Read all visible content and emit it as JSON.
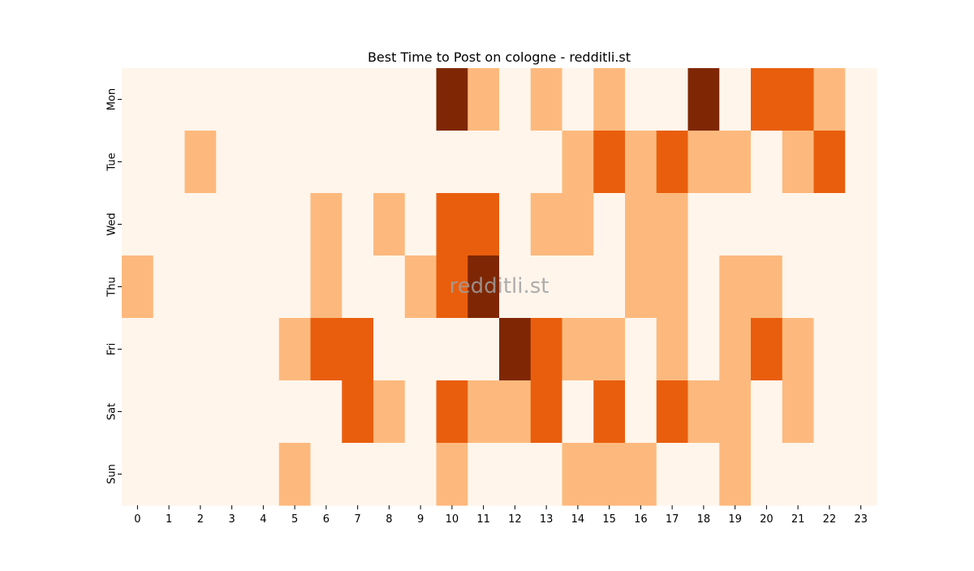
{
  "chart_data": {
    "type": "heatmap",
    "title": "Best Time to Post on cologne - redditli.st",
    "watermark": "redditli.st",
    "xlabel": "",
    "ylabel": "",
    "x": [
      "0",
      "1",
      "2",
      "3",
      "4",
      "5",
      "6",
      "7",
      "8",
      "9",
      "10",
      "11",
      "12",
      "13",
      "14",
      "15",
      "16",
      "17",
      "18",
      "19",
      "20",
      "21",
      "22",
      "23"
    ],
    "y": [
      "Mon",
      "Tue",
      "Wed",
      "Thu",
      "Fri",
      "Sat",
      "Sun"
    ],
    "values": [
      [
        0,
        0,
        0,
        0,
        0,
        0,
        0,
        0,
        0,
        0,
        3,
        1,
        0,
        1,
        0,
        1,
        0,
        0,
        3,
        0,
        2,
        2,
        1,
        0
      ],
      [
        0,
        0,
        1,
        0,
        0,
        0,
        0,
        0,
        0,
        0,
        0,
        0,
        0,
        0,
        1,
        2,
        1,
        2,
        1,
        1,
        0,
        1,
        2,
        0
      ],
      [
        0,
        0,
        0,
        0,
        0,
        0,
        1,
        0,
        1,
        0,
        2,
        2,
        0,
        1,
        1,
        0,
        1,
        1,
        0,
        0,
        0,
        0,
        0,
        0
      ],
      [
        1,
        0,
        0,
        0,
        0,
        0,
        1,
        0,
        0,
        1,
        2,
        3,
        0,
        0,
        0,
        0,
        1,
        1,
        0,
        1,
        1,
        0,
        0,
        0
      ],
      [
        0,
        0,
        0,
        0,
        0,
        1,
        2,
        2,
        0,
        0,
        0,
        0,
        3,
        2,
        1,
        1,
        0,
        1,
        0,
        1,
        2,
        1,
        0,
        0
      ],
      [
        0,
        0,
        0,
        0,
        0,
        0,
        0,
        2,
        1,
        0,
        2,
        1,
        1,
        2,
        0,
        2,
        0,
        2,
        1,
        1,
        0,
        1,
        0,
        0
      ],
      [
        0,
        0,
        0,
        0,
        0,
        1,
        0,
        0,
        0,
        0,
        1,
        0,
        0,
        0,
        1,
        1,
        1,
        0,
        0,
        1,
        0,
        0,
        0,
        0
      ]
    ],
    "colorscale": [
      "#fff5eb",
      "#fdb97d",
      "#e95e0d",
      "#7f2704"
    ],
    "grid": false,
    "legend": "none"
  }
}
